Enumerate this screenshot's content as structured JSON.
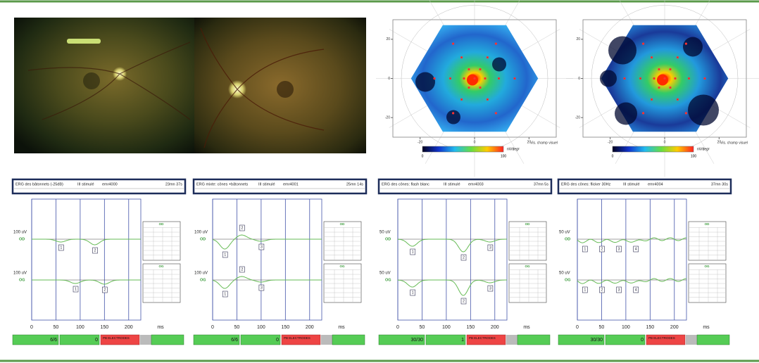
{
  "mferg": [
    {
      "xlim": [
        -30,
        30
      ],
      "ylim": [
        -30,
        30
      ],
      "xticks": [
        -20,
        0,
        20
      ],
      "yticks": [
        -20,
        0,
        20
      ],
      "colorbar_labels": [
        "0",
        "100"
      ],
      "unit": "nV/deg²",
      "note": "Vis. champ visuel"
    },
    {
      "xlim": [
        -30,
        30
      ],
      "ylim": [
        -30,
        30
      ],
      "xticks": [
        -20,
        0,
        20
      ],
      "yticks": [
        -20,
        0,
        20
      ],
      "colorbar_labels": [
        "0",
        "100"
      ],
      "unit": "nV/deg²",
      "note": "Vis. champ visuel"
    }
  ],
  "marker_labels": [
    "1",
    "2",
    "3",
    "4",
    "5"
  ],
  "erg": [
    {
      "title": "ERG des bâtonnets (-25dB)",
      "stimulus": "III stimulé",
      "id": "emr4000",
      "time": "23mn 37s",
      "scale": "100 uV",
      "eyes": [
        "OD",
        "OG"
      ],
      "xlim": [
        0,
        225
      ],
      "xticks": [
        0,
        50,
        100,
        150,
        200
      ],
      "xunit": "ms",
      "accepted": "6/6",
      "rejected": "0",
      "alert": "PB ELECTRODES"
    },
    {
      "title": "ERG mixte: cônes +bâtonnets",
      "stimulus": "III stimulé",
      "id": "emr4001",
      "time": "25mn 14s",
      "scale": "100 uV",
      "eyes": [
        "OD",
        "OG"
      ],
      "xlim": [
        0,
        225
      ],
      "xticks": [
        0,
        50,
        100,
        150,
        200
      ],
      "xunit": "ms",
      "accepted": "6/6",
      "rejected": "0",
      "alert": "PB ELECTRODES"
    },
    {
      "title": "ERG des cônes: flash blanc",
      "stimulus": "III stimulé",
      "id": "emr4003",
      "time": "37mn 5s",
      "scale": "50 uV",
      "eyes": [
        "OD",
        "OG"
      ],
      "xlim": [
        0,
        225
      ],
      "xticks": [
        0,
        50,
        100,
        150,
        200
      ],
      "xunit": "ms",
      "accepted": "30/30",
      "rejected": "1",
      "alert": "PB ELECTRODES"
    },
    {
      "title": "ERG des cônes: flicker 30Hz",
      "stimulus": "III stimulé",
      "id": "emr4004",
      "time": "37mn 30s",
      "scale": "50 uV",
      "eyes": [
        "OD",
        "OG"
      ],
      "xlim": [
        0,
        225
      ],
      "xticks": [
        0,
        50,
        100,
        150,
        200
      ],
      "xunit": "ms",
      "accepted": "30/30",
      "rejected": "0",
      "alert": "PB ELECTRODES"
    }
  ]
}
